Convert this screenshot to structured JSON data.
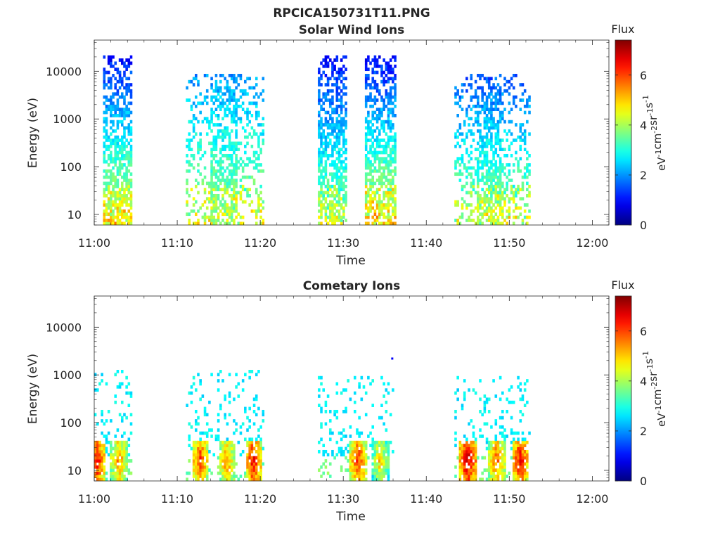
{
  "figure": {
    "title": "RPCICA150731T11.PNG"
  },
  "chart_data": [
    {
      "type": "heatmap",
      "title": "Solar Wind Ions",
      "xlabel": "Time",
      "ylabel": "Energy (eV)",
      "x_ticks": [
        "11:00",
        "11:10",
        "11:20",
        "11:30",
        "11:40",
        "11:50",
        "12:00"
      ],
      "x_range_minutes": [
        0,
        62
      ],
      "y_scale": "log",
      "y_ticks": [
        "10",
        "100",
        "1000",
        "10000"
      ],
      "y_range": [
        6,
        45000
      ],
      "colorbar": {
        "label": "Flux",
        "unit": "eV-1cm-2sr-1s-1",
        "ticks": [
          "0",
          "2",
          "4",
          "6"
        ],
        "range": [
          0,
          7.4
        ],
        "colormap": "jet"
      },
      "bursts": [
        {
          "start": 1.0,
          "end": 4.5,
          "emax": 20000,
          "low_flux": 4.5,
          "high_flux": 1.0
        },
        {
          "start": 11.0,
          "end": 20.5,
          "emax": 9000,
          "low_flux": 4.0,
          "high_flux": 2.0,
          "core": [
            14.0,
            17.2
          ]
        },
        {
          "start": 27.0,
          "end": 30.5,
          "emax": 20000,
          "low_flux": 4.0,
          "high_flux": 1.0
        },
        {
          "start": 32.5,
          "end": 36.5,
          "emax": 20000,
          "low_flux": 4.5,
          "high_flux": 1.0
        },
        {
          "start": 43.5,
          "end": 52.5,
          "emax": 9000,
          "low_flux": 4.0,
          "high_flux": 1.5,
          "core": [
            46.0,
            49.0
          ]
        }
      ]
    },
    {
      "type": "heatmap",
      "title": "Cometary Ions",
      "xlabel": "Time",
      "ylabel": "Energy (eV)",
      "x_ticks": [
        "11:00",
        "11:10",
        "11:20",
        "11:30",
        "11:40",
        "11:50",
        "12:00"
      ],
      "x_range_minutes": [
        0,
        62
      ],
      "y_scale": "log",
      "y_ticks": [
        "10",
        "100",
        "1000",
        "10000"
      ],
      "y_range": [
        6,
        45000
      ],
      "colorbar": {
        "label": "Flux",
        "unit": "eV-1cm-2sr-1s-1",
        "ticks": [
          "0",
          "2",
          "4",
          "6"
        ],
        "range": [
          0,
          7.4
        ],
        "colormap": "jet"
      },
      "bursts": [
        {
          "start": 0.0,
          "end": 4.5,
          "emax": 1200,
          "peaks": [
            {
              "t": 0.3,
              "flux": 6.5
            },
            {
              "t": 3.0,
              "flux": 5.5
            }
          ]
        },
        {
          "start": 11.0,
          "end": 20.5,
          "emax": 1200,
          "peaks": [
            {
              "t": 12.8,
              "flux": 6.0
            },
            {
              "t": 16.0,
              "flux": 5.5
            },
            {
              "t": 19.2,
              "flux": 6.5
            }
          ]
        },
        {
          "start": 27.0,
          "end": 36.0,
          "emax": 900,
          "peaks": [
            {
              "t": 31.8,
              "flux": 6.2
            },
            {
              "t": 34.5,
              "flux": 5.0
            }
          ]
        },
        {
          "start": 43.5,
          "end": 52.5,
          "emax": 1000,
          "peaks": [
            {
              "t": 45.0,
              "flux": 6.8
            },
            {
              "t": 48.5,
              "flux": 5.8
            },
            {
              "t": 51.3,
              "flux": 6.5
            }
          ]
        }
      ]
    }
  ]
}
